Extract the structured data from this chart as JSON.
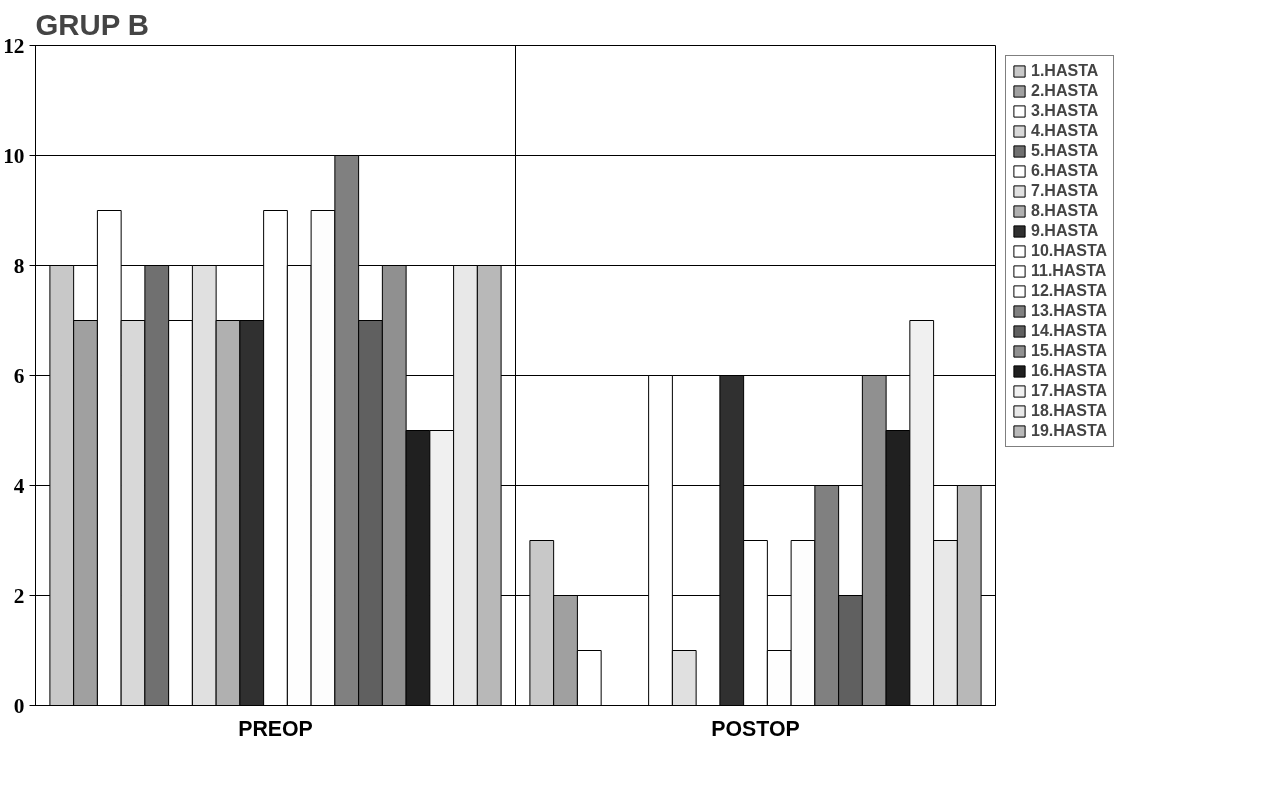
{
  "chart_data": {
    "type": "bar",
    "title": "GRUP B",
    "categories": [
      "PREOP",
      "POSTOP"
    ],
    "series": [
      {
        "name": "1.HASTA",
        "color": "#c8c8c8",
        "values": [
          8,
          3
        ]
      },
      {
        "name": "2.HASTA",
        "color": "#a0a0a0",
        "values": [
          7,
          2
        ]
      },
      {
        "name": "3.HASTA",
        "color": "#ffffff",
        "values": [
          9,
          1
        ]
      },
      {
        "name": "4.HASTA",
        "color": "#d8d8d8",
        "values": [
          7,
          0
        ]
      },
      {
        "name": "5.HASTA",
        "color": "#707070",
        "values": [
          8,
          0
        ]
      },
      {
        "name": "6.HASTA",
        "color": "#ffffff",
        "values": [
          7,
          6
        ]
      },
      {
        "name": "7.HASTA",
        "color": "#e0e0e0",
        "values": [
          8,
          1
        ]
      },
      {
        "name": "8.HASTA",
        "color": "#b0b0b0",
        "values": [
          7,
          0
        ]
      },
      {
        "name": "9.HASTA",
        "color": "#303030",
        "values": [
          7,
          6
        ]
      },
      {
        "name": "10.HASTA",
        "color": "#ffffff",
        "values": [
          9,
          3
        ]
      },
      {
        "name": "11.HASTA",
        "color": "#fefefe",
        "values": [
          8,
          1
        ]
      },
      {
        "name": "12.HASTA",
        "color": "#fdfdfd",
        "values": [
          9,
          3
        ]
      },
      {
        "name": "13.HASTA",
        "color": "#808080",
        "values": [
          10,
          4
        ]
      },
      {
        "name": "14.HASTA",
        "color": "#606060",
        "values": [
          7,
          2
        ]
      },
      {
        "name": "15.HASTA",
        "color": "#909090",
        "values": [
          8,
          6
        ]
      },
      {
        "name": "16.HASTA",
        "color": "#202020",
        "values": [
          5,
          5
        ]
      },
      {
        "name": "17.HASTA",
        "color": "#f0f0f0",
        "values": [
          5,
          7
        ]
      },
      {
        "name": "18.HASTA",
        "color": "#e8e8e8",
        "values": [
          8,
          3
        ]
      },
      {
        "name": "19.HASTA",
        "color": "#b8b8b8",
        "values": [
          8,
          4
        ]
      }
    ],
    "ylim": [
      0,
      12
    ],
    "yticks": [
      0,
      2,
      4,
      6,
      8,
      10,
      12
    ],
    "grid": true,
    "legend": "right"
  }
}
